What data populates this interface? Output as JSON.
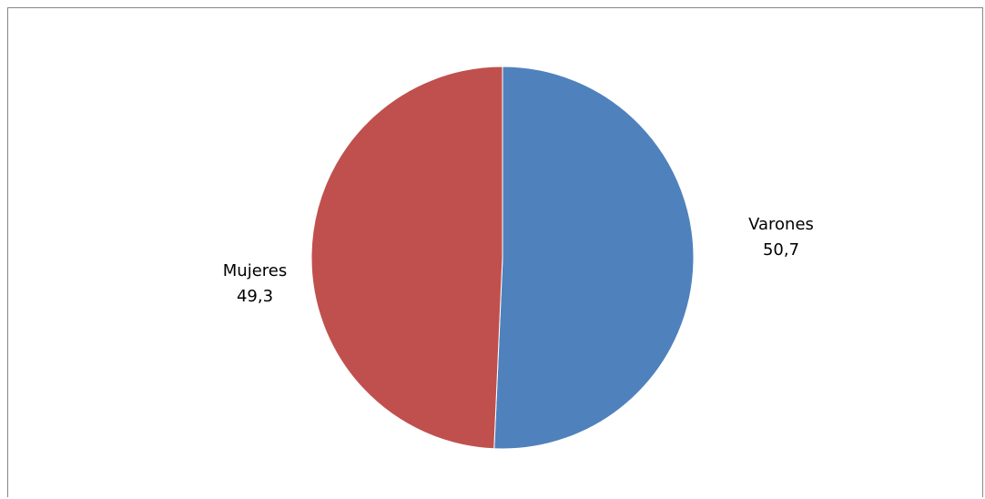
{
  "chart_data": {
    "type": "pie",
    "categories": [
      "Varones",
      "Mujeres"
    ],
    "values": [
      50.7,
      49.3
    ],
    "value_labels": [
      "50,7",
      "49,3"
    ],
    "colors": [
      "#4F81BD",
      "#C0504D"
    ],
    "start_angle_deg": 0,
    "direction": "clockwise",
    "legend": "none",
    "data_labels": "outside"
  }
}
